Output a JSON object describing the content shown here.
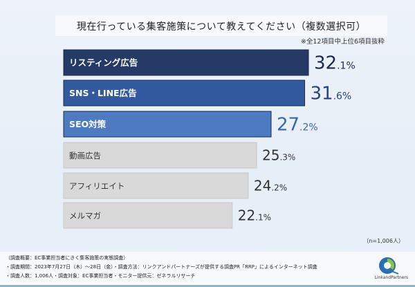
{
  "title": "現在行っている集客施策について教えてください（複数選択可）",
  "note": "※全12項目中上位6項目抜粋",
  "sample_note": "（n=1,006人）",
  "footer": {
    "line1": "（調査概要：EC事業担当者にきく集客施策の実態調査）",
    "line2": "・調査期間：2023年7月27日（木）〜28日（金）・調査方法：リンクアンドパートナーズが提供する調査PR「RRP」によるインターネット調査",
    "line3": "・調査人数：1,006人・調査対象：EC事業担当者・モニター提供元：ゼネラルリサーチ",
    "logo_text": "LinkandPartners"
  },
  "chart_data": {
    "type": "bar",
    "orientation": "horizontal",
    "title": "現在行っている集客施策について教えてください（複数選択可）",
    "categories": [
      "リスティング広告",
      "SNS・LINE広告",
      "SEO対策",
      "動画広告",
      "アフィリエイト",
      "メルマガ"
    ],
    "values": [
      32.1,
      31.6,
      27.2,
      25.3,
      24.2,
      22.1
    ],
    "unit": "%",
    "xlim": [
      0,
      32.1
    ],
    "grid": false,
    "bar_colors": [
      "#253a66",
      "#335a9e",
      "#4d7bc2",
      "#d9d9d9",
      "#d9d9d9",
      "#d9d9d9"
    ],
    "value_colors": [
      "#1b2a50",
      "#28447f",
      "#3a66b0",
      "#333333",
      "#333333",
      "#333333"
    ],
    "label_colors": [
      "#ffffff",
      "#ffffff",
      "#ffffff",
      "#333333",
      "#333333",
      "#333333"
    ]
  }
}
